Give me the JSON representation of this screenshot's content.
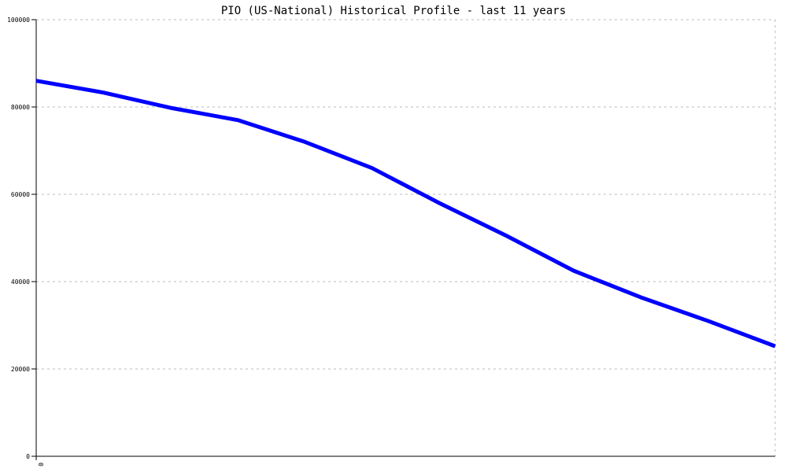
{
  "chart_data": {
    "type": "line",
    "title": "PIO (US-National) Historical Profile - last 11 years",
    "xlabel": "",
    "ylabel": "",
    "ylim": [
      0,
      100000
    ],
    "yticks": [
      "0",
      "20000",
      "40000",
      "60000",
      "80000",
      "100000"
    ],
    "xticks": [
      "0"
    ],
    "grid": true,
    "series": [
      {
        "color": "#0000ff",
        "x": [
          0,
          1,
          2,
          3,
          4,
          5,
          6,
          7,
          8,
          9,
          10,
          11
        ],
        "y": [
          86000,
          83300,
          79800,
          77000,
          72000,
          66000,
          58000,
          50500,
          42500,
          36400,
          31000,
          25200
        ]
      }
    ]
  }
}
